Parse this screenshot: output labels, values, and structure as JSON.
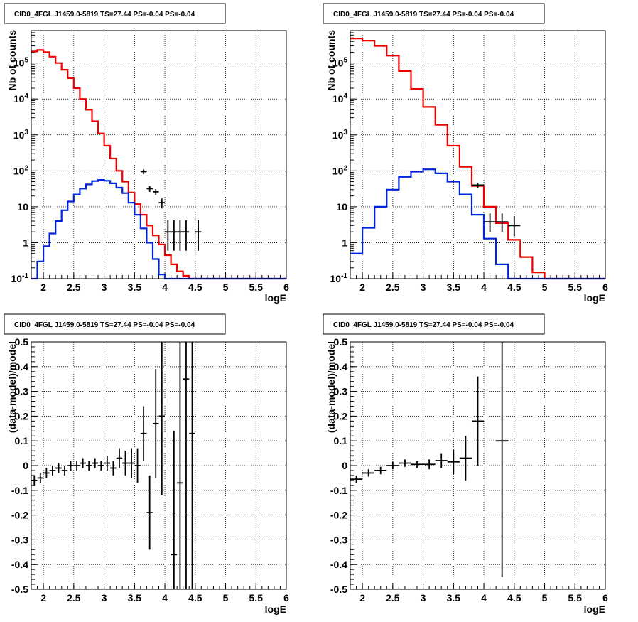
{
  "colors": {
    "model_total": "#ee0000",
    "model_source": "#0022dd",
    "data": "#000000"
  },
  "chart_data": [
    {
      "type": "line",
      "title": "CID0_4FGL J1459.0-5819 TS=27.44 PS=-0.04 PS=-0.04",
      "xlabel": "logE",
      "ylabel": "Nb of counts",
      "log_y": true,
      "xlim": [
        1.8,
        6.0
      ],
      "ylim": [
        0.1,
        800000
      ],
      "grid": true,
      "x_ticks": [
        "2",
        "2.5",
        "3",
        "3.5",
        "4",
        "4.5",
        "5",
        "5.5",
        "6"
      ],
      "y_ticks": [
        "10^-1",
        "1",
        "10",
        "10^2",
        "10^3",
        "10^4",
        "10^5"
      ],
      "bins": {
        "start": 1.8,
        "width": 0.1
      },
      "series": [
        {
          "key": "model_total",
          "style": "step",
          "values": [
            210000,
            230000,
            200000,
            150000,
            100000,
            65000,
            38000,
            20000,
            10000,
            5000,
            2400,
            1100,
            500,
            220,
            100,
            50,
            25,
            12,
            6,
            3,
            1.6,
            0.9,
            0.45,
            0.25,
            0.16,
            0.12,
            0.1,
            0.1,
            0.1,
            0.1,
            0.1,
            0.1,
            0.1,
            0.1,
            0.1,
            0.1,
            0.1,
            0.1,
            0.1,
            0.1,
            0.1,
            0.1
          ]
        },
        {
          "key": "model_source",
          "style": "step",
          "values": [
            0.1,
            0.3,
            0.8,
            1.8,
            4,
            8,
            14,
            22,
            32,
            42,
            52,
            56,
            53,
            45,
            34,
            24,
            13,
            6,
            2.5,
            1,
            0.35,
            0.13,
            0.1,
            0.1,
            0.1,
            0.1,
            0.1,
            0.1,
            0.1,
            0.1,
            0.1,
            0.1,
            0.1,
            0.1,
            0.1,
            0.1,
            0.1,
            0.1,
            0.1,
            0.1,
            0.1,
            0.1
          ]
        },
        {
          "key": "data",
          "style": "errorbar",
          "points": [
            {
              "x": 3.65,
              "y": 95,
              "lo": 80,
              "hi": 110
            },
            {
              "x": 3.75,
              "y": 32,
              "lo": 26,
              "hi": 38
            },
            {
              "x": 3.85,
              "y": 26,
              "lo": 21,
              "hi": 31
            },
            {
              "x": 3.95,
              "y": 13,
              "lo": 9,
              "hi": 17
            },
            {
              "x": 4.05,
              "y": 2,
              "lo": 0.6,
              "hi": 4.2
            },
            {
              "x": 4.15,
              "y": 2,
              "lo": 0.6,
              "hi": 4.2
            },
            {
              "x": 4.25,
              "y": 2,
              "lo": 0.6,
              "hi": 4.2
            },
            {
              "x": 4.35,
              "y": 2,
              "lo": 0.6,
              "hi": 4.2
            },
            {
              "x": 4.55,
              "y": 2,
              "lo": 0.6,
              "hi": 4.2
            }
          ]
        }
      ]
    },
    {
      "type": "line",
      "title": "CID0_4FGL J1459.0-5819 TS=27.44 PS=-0.04 PS=-0.04",
      "xlabel": "logE",
      "ylabel": "Nb of counts",
      "log_y": true,
      "xlim": [
        1.8,
        6.0
      ],
      "ylim": [
        0.1,
        800000
      ],
      "grid": true,
      "x_ticks": [
        "2",
        "2.5",
        "3",
        "3.5",
        "4",
        "4.5",
        "5",
        "5.5",
        "6"
      ],
      "y_ticks": [
        "10^-1",
        "1",
        "10",
        "10^2",
        "10^3",
        "10^4",
        "10^5"
      ],
      "bins": {
        "start": 1.8,
        "width": 0.2
      },
      "series": [
        {
          "key": "model_total",
          "style": "step",
          "values": [
            480000,
            420000,
            300000,
            160000,
            60000,
            19000,
            6000,
            1900,
            500,
            130,
            38,
            10,
            3.5,
            1.2,
            0.4,
            0.15,
            0.1,
            0.1,
            0.1,
            0.1,
            0.1
          ]
        },
        {
          "key": "model_source",
          "style": "step",
          "values": [
            0.5,
            2.6,
            10,
            30,
            68,
            95,
            110,
            85,
            50,
            22,
            6,
            1.3,
            0.25,
            0.1,
            0.1,
            0.1,
            0.1,
            0.1,
            0.1,
            0.1,
            0.1
          ]
        },
        {
          "key": "data",
          "style": "errorbar",
          "points": [
            {
              "x": 3.9,
              "y": 40,
              "lo": 34,
              "hi": 46
            },
            {
              "x": 4.1,
              "y": 3.8,
              "lo": 2,
              "hi": 6.5
            },
            {
              "x": 4.3,
              "y": 3.8,
              "lo": 2,
              "hi": 6.5
            },
            {
              "x": 4.5,
              "y": 3,
              "lo": 1.5,
              "hi": 5.5
            }
          ]
        }
      ]
    },
    {
      "type": "scatter",
      "title": "CID0_4FGL J1459.0-5819 TS=27.44 PS=-0.04 PS=-0.04",
      "xlabel": "logE",
      "ylabel": "(data-model)/model",
      "xlim": [
        1.8,
        6.0
      ],
      "ylim": [
        -0.5,
        0.5
      ],
      "grid": true,
      "x_ticks": [
        "2",
        "2.5",
        "3",
        "3.5",
        "4",
        "4.5",
        "5",
        "5.5",
        "6"
      ],
      "y_ticks": [
        "-0.5",
        "-0.4",
        "-0.3",
        "-0.2",
        "-0.1",
        "0",
        "0.1",
        "0.2",
        "0.3",
        "0.4",
        "0.5"
      ],
      "bin_width": 0.1,
      "points": [
        {
          "x": 1.85,
          "y": -0.06,
          "e": 0.02
        },
        {
          "x": 1.95,
          "y": -0.05,
          "e": 0.02
        },
        {
          "x": 2.05,
          "y": -0.03,
          "e": 0.02
        },
        {
          "x": 2.15,
          "y": -0.02,
          "e": 0.02
        },
        {
          "x": 2.25,
          "y": -0.01,
          "e": 0.02
        },
        {
          "x": 2.35,
          "y": -0.02,
          "e": 0.02
        },
        {
          "x": 2.45,
          "y": 0.0,
          "e": 0.02
        },
        {
          "x": 2.55,
          "y": 0.0,
          "e": 0.02
        },
        {
          "x": 2.65,
          "y": 0.01,
          "e": 0.02
        },
        {
          "x": 2.75,
          "y": 0.0,
          "e": 0.02
        },
        {
          "x": 2.85,
          "y": 0.01,
          "e": 0.02
        },
        {
          "x": 2.95,
          "y": 0.0,
          "e": 0.02
        },
        {
          "x": 3.05,
          "y": 0.01,
          "e": 0.03
        },
        {
          "x": 3.15,
          "y": -0.01,
          "e": 0.03
        },
        {
          "x": 3.25,
          "y": 0.03,
          "e": 0.04
        },
        {
          "x": 3.35,
          "y": 0.01,
          "e": 0.05
        },
        {
          "x": 3.45,
          "y": 0.01,
          "e": 0.06
        },
        {
          "x": 3.55,
          "y": 0.0,
          "e": 0.07
        },
        {
          "x": 3.65,
          "y": 0.13,
          "e": 0.11
        },
        {
          "x": 3.75,
          "y": -0.19,
          "e": 0.15
        },
        {
          "x": 3.85,
          "y": 0.17,
          "e": 0.22
        },
        {
          "x": 3.95,
          "y": 0.2,
          "e": 0.32
        },
        {
          "x": 4.15,
          "y": -0.36,
          "e": 0.5
        },
        {
          "x": 4.25,
          "y": -0.07,
          "e": 0.6
        },
        {
          "x": 4.35,
          "y": 0.35,
          "e": 1.0
        },
        {
          "x": 4.45,
          "y": 0.13,
          "e": 1.0
        }
      ]
    },
    {
      "type": "scatter",
      "title": "CID0_4FGL J1459.0-5819 TS=27.44 PS=-0.04 PS=-0.04",
      "xlabel": "logE",
      "ylabel": "(data-model)/model",
      "xlim": [
        1.8,
        6.0
      ],
      "ylim": [
        -0.5,
        0.5
      ],
      "grid": true,
      "x_ticks": [
        "2",
        "2.5",
        "3",
        "3.5",
        "4",
        "4.5",
        "5",
        "5.5",
        "6"
      ],
      "y_ticks": [
        "-0.5",
        "-0.4",
        "-0.3",
        "-0.2",
        "-0.1",
        "0",
        "0.1",
        "0.2",
        "0.3",
        "0.4",
        "0.5"
      ],
      "bin_width": 0.2,
      "points": [
        {
          "x": 1.9,
          "y": -0.055,
          "e": 0.015
        },
        {
          "x": 2.1,
          "y": -0.03,
          "e": 0.015
        },
        {
          "x": 2.3,
          "y": -0.02,
          "e": 0.015
        },
        {
          "x": 2.5,
          "y": 0.0,
          "e": 0.015
        },
        {
          "x": 2.7,
          "y": 0.01,
          "e": 0.015
        },
        {
          "x": 2.9,
          "y": 0.005,
          "e": 0.015
        },
        {
          "x": 3.1,
          "y": 0.005,
          "e": 0.02
        },
        {
          "x": 3.3,
          "y": 0.02,
          "e": 0.03
        },
        {
          "x": 3.5,
          "y": 0.015,
          "e": 0.05
        },
        {
          "x": 3.7,
          "y": 0.03,
          "e": 0.09
        },
        {
          "x": 3.9,
          "y": 0.18,
          "e": 0.18
        },
        {
          "x": 4.3,
          "y": 0.1,
          "e": 0.55
        }
      ]
    }
  ]
}
